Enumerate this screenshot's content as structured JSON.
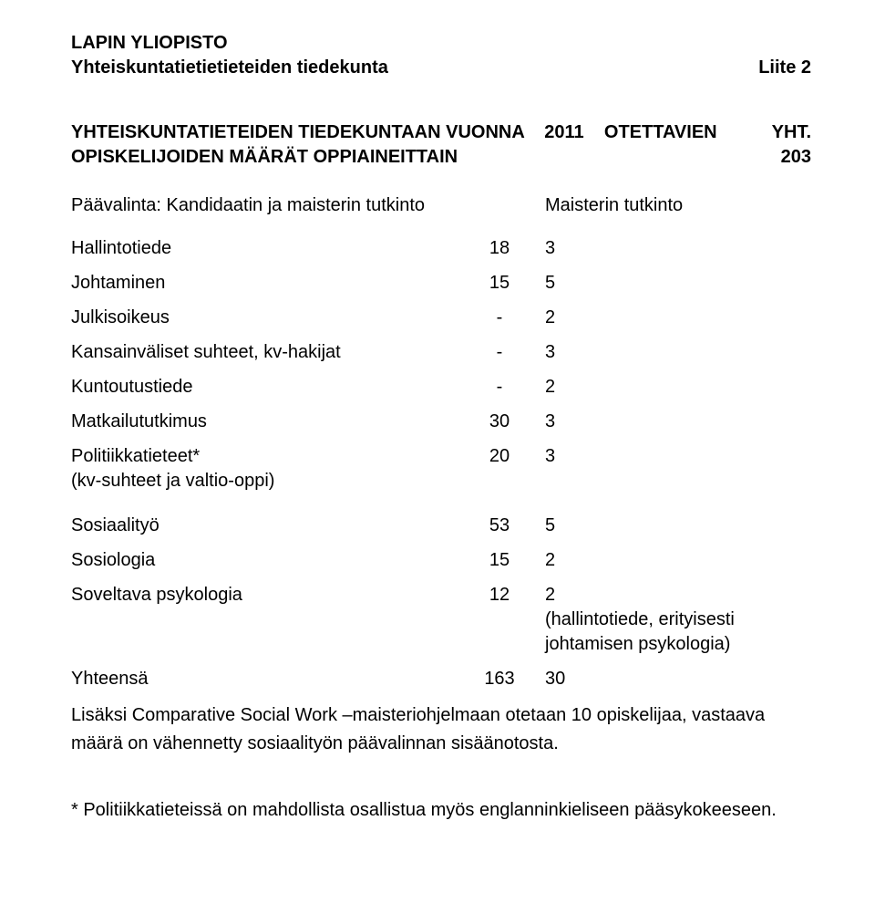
{
  "header": {
    "org": "LAPIN YLIOPISTO",
    "faculty": "Yhteiskuntatietietieteiden tiedekunta",
    "appendix": "Liite  2"
  },
  "title": {
    "line1": "YHTEISKUNTATIETEIDEN  TIEDEKUNTAAN  VUONNA",
    "line2": "OPISKELIJOIDEN MÄÄRÄT OPPIAINEITTAIN",
    "yht_label": "YHT.",
    "year": "2011",
    "otettavien": "OTETTAVIEN",
    "total": "203"
  },
  "subheader": {
    "left": "Päävalinta: Kandidaatin ja maisterin tutkinto",
    "right": "Maisterin tutkinto"
  },
  "rows": [
    {
      "label": "Hallintotiede",
      "v1": "18",
      "v2": "3",
      "spaced": false
    },
    {
      "label": "Johtaminen",
      "v1": "15",
      "v2": "5",
      "spaced": false
    },
    {
      "label": "Julkisoikeus",
      "v1": "-",
      "v2": "2",
      "spaced": false
    },
    {
      "label": "Kansainväliset suhteet, kv-hakijat",
      "v1": "-",
      "v2": "3",
      "spaced": false
    },
    {
      "label": "Kuntoutustiede",
      "v1": "-",
      "v2": "2",
      "spaced": false
    },
    {
      "label": "Matkailututkimus",
      "v1": "30",
      "v2": "3",
      "spaced": false
    },
    {
      "label": "Politiikkatieteet*",
      "sublabel": "(kv-suhteet ja valtio-oppi)",
      "v1": "20",
      "v2": "3",
      "spaced": false
    },
    {
      "label": "Sosiaalityö",
      "v1": "53",
      "v2": "5",
      "spaced": true
    },
    {
      "label": "Sosiologia",
      "v1": "15",
      "v2": "2",
      "spaced": false
    },
    {
      "label": "Soveltava psykologia",
      "v1": "12",
      "v2": "2",
      "v2_extra1": "(hallintotiede, erityisesti",
      "v2_extra2": "johtamisen psykologia)",
      "spaced": false
    }
  ],
  "total_row": {
    "label": "Yhteensä",
    "v1": "163",
    "v2": "30"
  },
  "note": "Lisäksi Comparative Social Work –maisteriohjelmaan otetaan 10 opiskelijaa, vastaava määrä on vähennetty sosiaalityön päävalinnan sisäänotosta.",
  "footnote": "* Politiikkatieteissä on mahdollista osallistua myös englanninkieliseen pääsykokeeseen."
}
